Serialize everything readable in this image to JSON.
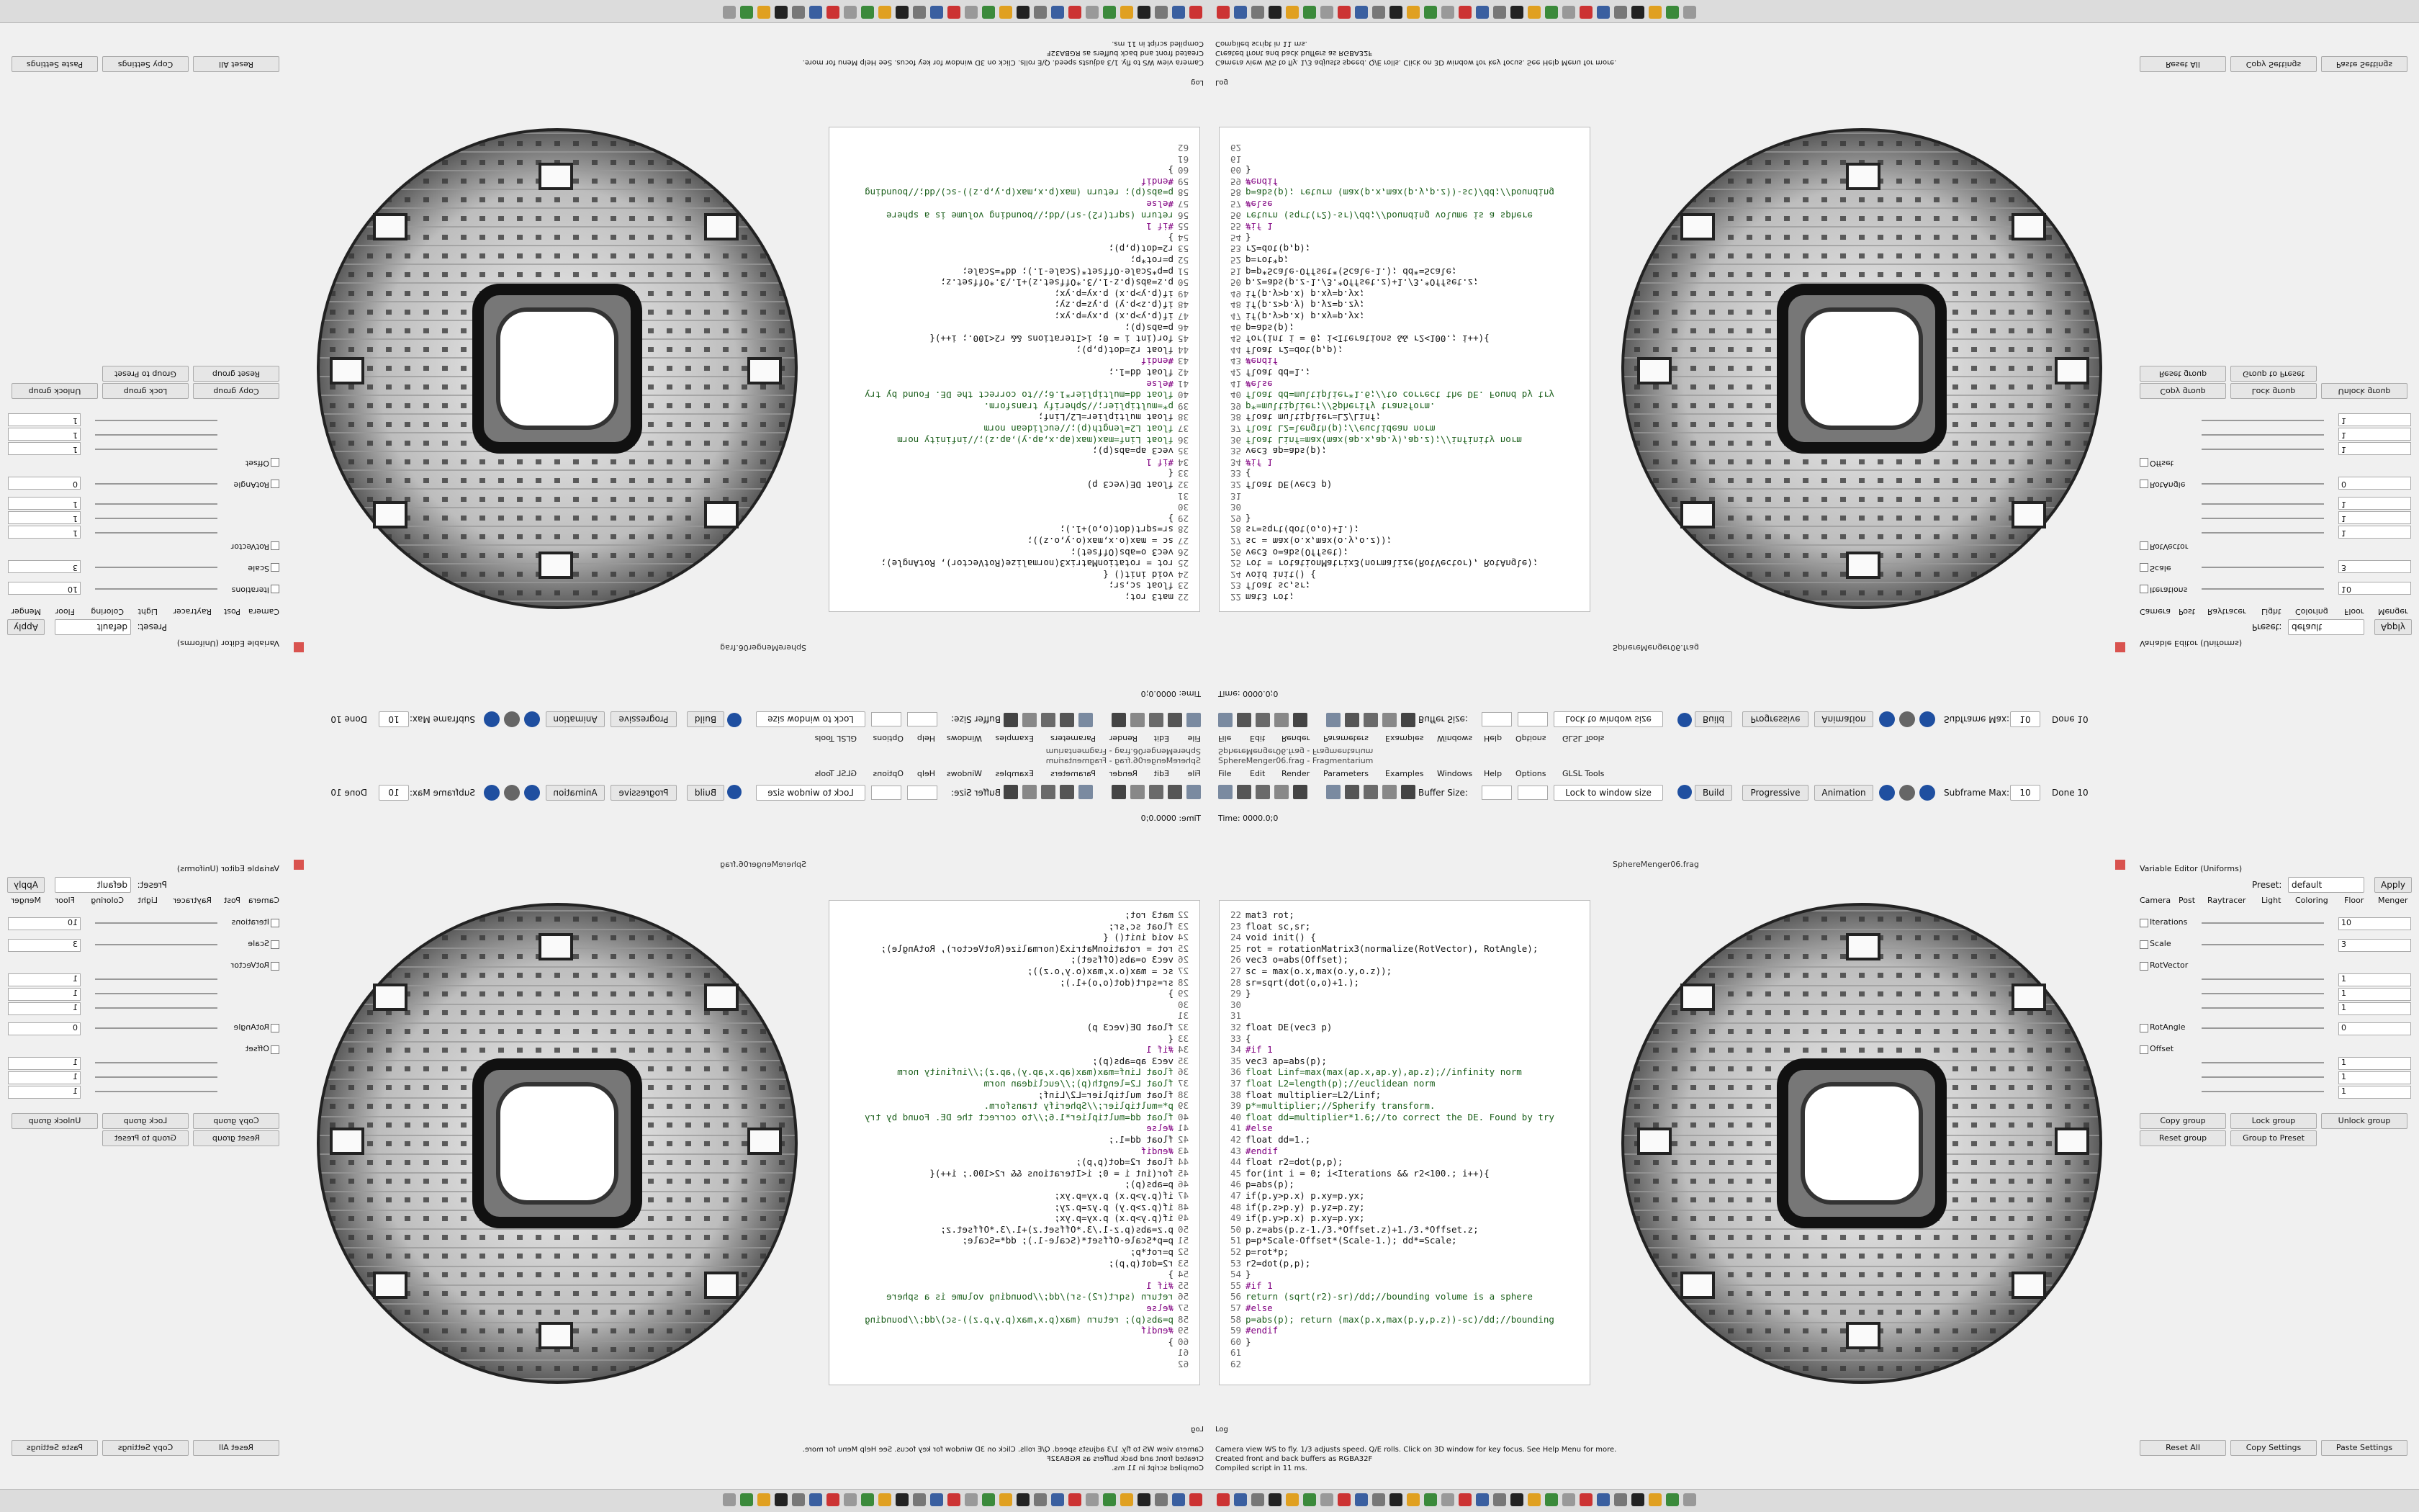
{
  "window": {
    "title": "SphereMenger06.frag - Fragmentarium"
  },
  "menu": [
    "File",
    "Edit",
    "Render",
    "Parameters",
    "Examples",
    "Windows",
    "Help",
    "Options",
    "GLSL Tools"
  ],
  "toolbar": {
    "buffer_size": "Buffer Size:",
    "lock": "Lock to window size",
    "build": "Build",
    "progressive": "Progressive",
    "animation": "Animation",
    "subframe": "Subframe Max:",
    "subframe_value": "10",
    "done": "Done 10"
  },
  "time": "Time: 0000.0;0",
  "tab": "SphereMenger06.frag",
  "code": {
    "lines": [
      {
        "n": 22,
        "text": "mat3 rot;"
      },
      {
        "n": 23,
        "text": "float sc,sr;"
      },
      {
        "n": 24,
        "text": "void init() {"
      },
      {
        "n": 25,
        "text": "  rot = rotationMatrix3(normalize(RotVector), RotAngle);"
      },
      {
        "n": 26,
        "text": "  vec3 o=abs(Offset);"
      },
      {
        "n": 27,
        "text": "  sc = max(o.x,max(o.y,o.z));"
      },
      {
        "n": 28,
        "text": "  sr=sqrt(dot(o,o)+1.);"
      },
      {
        "n": 29,
        "text": "}"
      },
      {
        "n": 30,
        "text": ""
      },
      {
        "n": 31,
        "text": ""
      },
      {
        "n": 32,
        "text": "float DE(vec3 p)"
      },
      {
        "n": 33,
        "text": "{"
      },
      {
        "n": 34,
        "text": "#if 1"
      },
      {
        "n": 35,
        "text": "  vec3 ap=abs(p);"
      },
      {
        "n": 36,
        "text": "  float Linf=max(max(ap.x,ap.y),ap.z);//infinity norm"
      },
      {
        "n": 37,
        "text": "  float L2=length(p);//euclidean norm"
      },
      {
        "n": 38,
        "text": "  float multiplier=L2/Linf;"
      },
      {
        "n": 39,
        "text": "  p*=multiplier;//Spherify transform."
      },
      {
        "n": 40,
        "text": "  float dd=multiplier*1.6;//to correct the DE. Found by try"
      },
      {
        "n": 41,
        "text": "#else"
      },
      {
        "n": 42,
        "text": "  float dd=1.;"
      },
      {
        "n": 43,
        "text": "#endif"
      },
      {
        "n": 44,
        "text": "  float r2=dot(p,p);"
      },
      {
        "n": 45,
        "text": "  for(int i = 0; i<Iterations && r2<100.; i++){"
      },
      {
        "n": 46,
        "text": "    p=abs(p);"
      },
      {
        "n": 47,
        "text": "    if(p.y>p.x) p.xy=p.yx;"
      },
      {
        "n": 48,
        "text": "      if(p.z>p.y) p.yz=p.zy;"
      },
      {
        "n": 49,
        "text": "    if(p.y>p.x) p.xy=p.yx;"
      },
      {
        "n": 50,
        "text": "    p.z=abs(p.z-1./3.*Offset.z)+1./3.*Offset.z;"
      },
      {
        "n": 51,
        "text": "    p=p*Scale-Offset*(Scale-1.); dd*=Scale;"
      },
      {
        "n": 52,
        "text": "    p=rot*p;"
      },
      {
        "n": 53,
        "text": "    r2=dot(p,p);"
      },
      {
        "n": 54,
        "text": "  }"
      },
      {
        "n": 55,
        "text": "#if 1"
      },
      {
        "n": 56,
        "text": "  return (sqrt(r2)-sr)/dd;//bounding volume is a sphere"
      },
      {
        "n": 57,
        "text": "#else"
      },
      {
        "n": 58,
        "text": "  p=abs(p); return (max(p.x,max(p.y,p.z))-sc)/dd;//bounding"
      },
      {
        "n": 59,
        "text": "#endif"
      },
      {
        "n": 60,
        "text": "}"
      },
      {
        "n": 61,
        "text": ""
      },
      {
        "n": 62,
        "text": ""
      }
    ]
  },
  "panel": {
    "title": "Variable Editor (Uniforms)",
    "preset_label": "Preset:",
    "preset": "default",
    "apply": "Apply",
    "tabs": [
      "Camera",
      "Post",
      "Raytracer",
      "Light",
      "Coloring",
      "Floor",
      "Menger"
    ],
    "params": [
      {
        "name": "Iterations",
        "values": [
          10
        ]
      },
      {
        "name": "Scale",
        "values": [
          3
        ]
      },
      {
        "name": "RotVector",
        "values": [
          1,
          1,
          1
        ]
      },
      {
        "name": "RotAngle",
        "values": [
          0
        ]
      },
      {
        "name": "Offset",
        "values": [
          1,
          1,
          1
        ]
      }
    ],
    "group_buttons": [
      "Copy group",
      "Lock group",
      "Unlock group",
      "Reset group",
      "Group to Preset"
    ],
    "bottom_buttons": [
      "Reset All",
      "Copy Settings",
      "Paste Settings"
    ]
  },
  "log": {
    "title": "Log",
    "lines": [
      "Camera view WS to fly. 1/3 adjusts speed. Q/E rolls. Click on 3D window for key focus. See Help Menu for more.",
      "Created front and back buffers as RGBA32F",
      "Compiled script in 11 ms."
    ]
  }
}
